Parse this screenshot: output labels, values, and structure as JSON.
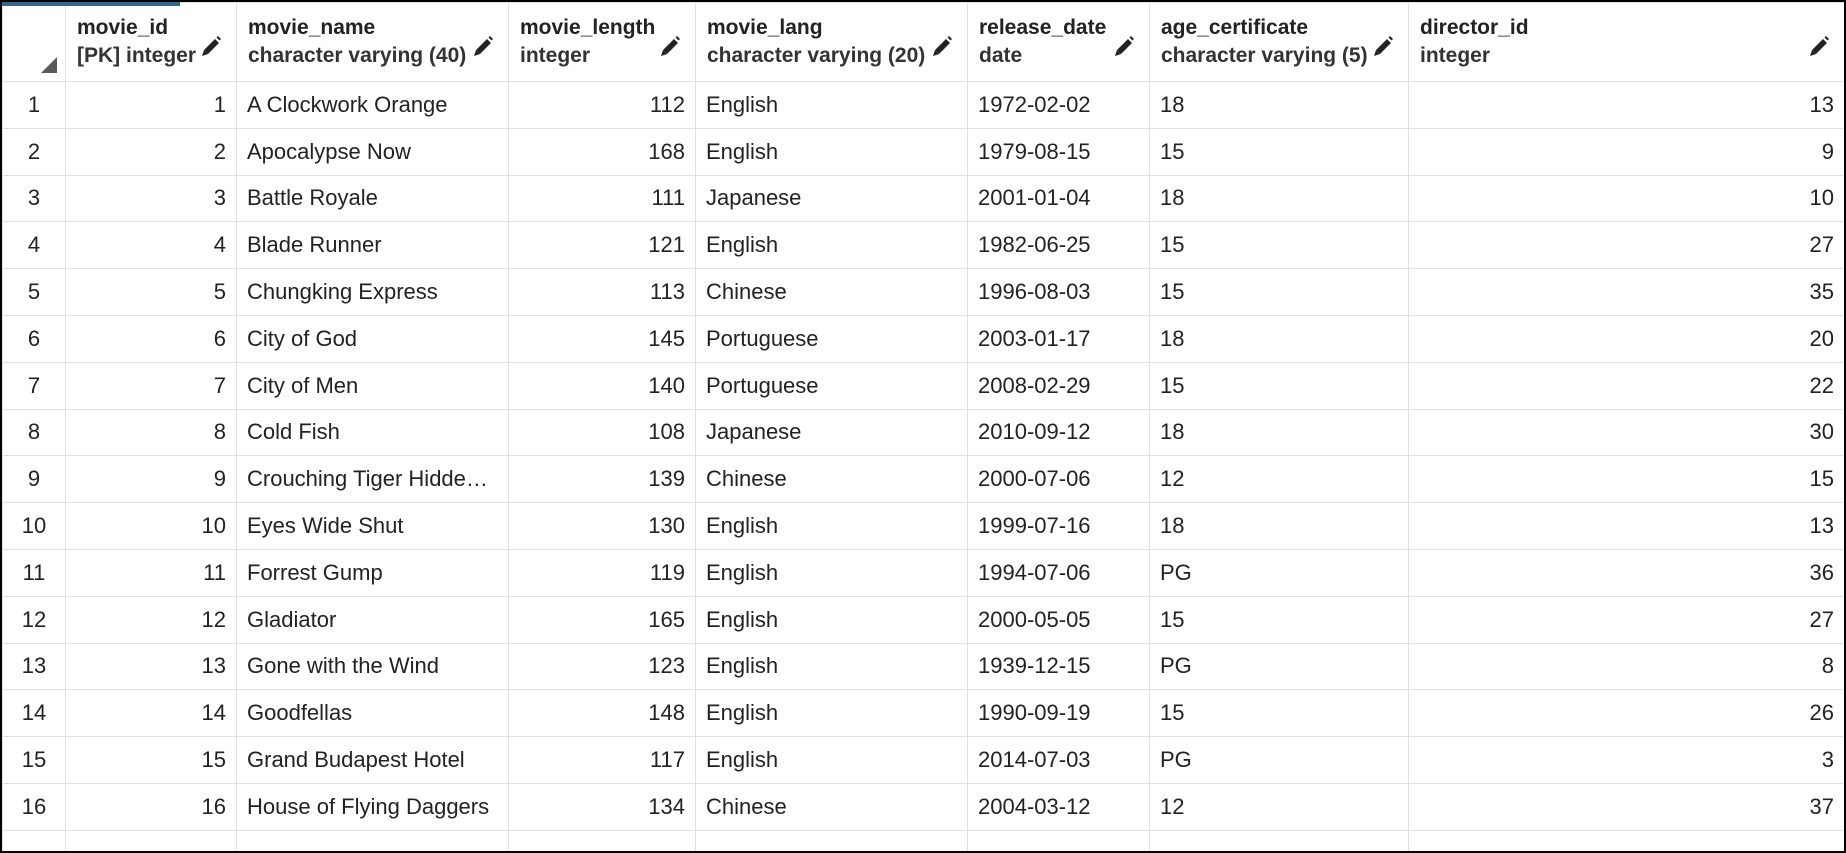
{
  "columns": [
    {
      "name": "movie_id",
      "type": "[PK] integer",
      "align": "num"
    },
    {
      "name": "movie_name",
      "type": "character varying (40)",
      "align": "txt"
    },
    {
      "name": "movie_length",
      "type": "integer",
      "align": "num"
    },
    {
      "name": "movie_lang",
      "type": "character varying (20)",
      "align": "txt"
    },
    {
      "name": "release_date",
      "type": "date",
      "align": "txt"
    },
    {
      "name": "age_certificate",
      "type": "character varying (5)",
      "align": "txt"
    },
    {
      "name": "director_id",
      "type": "integer",
      "align": "num"
    }
  ],
  "rows": [
    {
      "n": "1",
      "cells": [
        "1",
        "A Clockwork Orange",
        "112",
        "English",
        "1972-02-02",
        "18",
        "13"
      ]
    },
    {
      "n": "2",
      "cells": [
        "2",
        "Apocalypse Now",
        "168",
        "English",
        "1979-08-15",
        "15",
        "9"
      ]
    },
    {
      "n": "3",
      "cells": [
        "3",
        "Battle Royale",
        "111",
        "Japanese",
        "2001-01-04",
        "18",
        "10"
      ]
    },
    {
      "n": "4",
      "cells": [
        "4",
        "Blade Runner",
        "121",
        "English",
        "1982-06-25",
        "15",
        "27"
      ]
    },
    {
      "n": "5",
      "cells": [
        "5",
        "Chungking Express",
        "113",
        "Chinese",
        "1996-08-03",
        "15",
        "35"
      ]
    },
    {
      "n": "6",
      "cells": [
        "6",
        "City of God",
        "145",
        "Portuguese",
        "2003-01-17",
        "18",
        "20"
      ]
    },
    {
      "n": "7",
      "cells": [
        "7",
        "City of Men",
        "140",
        "Portuguese",
        "2008-02-29",
        "15",
        "22"
      ]
    },
    {
      "n": "8",
      "cells": [
        "8",
        "Cold Fish",
        "108",
        "Japanese",
        "2010-09-12",
        "18",
        "30"
      ]
    },
    {
      "n": "9",
      "cells": [
        "9",
        "Crouching Tiger Hidden Dra...",
        "139",
        "Chinese",
        "2000-07-06",
        "12",
        "15"
      ]
    },
    {
      "n": "10",
      "cells": [
        "10",
        "Eyes Wide Shut",
        "130",
        "English",
        "1999-07-16",
        "18",
        "13"
      ]
    },
    {
      "n": "11",
      "cells": [
        "11",
        "Forrest Gump",
        "119",
        "English",
        "1994-07-06",
        "PG",
        "36"
      ]
    },
    {
      "n": "12",
      "cells": [
        "12",
        "Gladiator",
        "165",
        "English",
        "2000-05-05",
        "15",
        "27"
      ]
    },
    {
      "n": "13",
      "cells": [
        "13",
        "Gone with the Wind",
        "123",
        "English",
        "1939-12-15",
        "PG",
        "8"
      ]
    },
    {
      "n": "14",
      "cells": [
        "14",
        "Goodfellas",
        "148",
        "English",
        "1990-09-19",
        "15",
        "26"
      ]
    },
    {
      "n": "15",
      "cells": [
        "15",
        "Grand Budapest Hotel",
        "117",
        "English",
        "2014-07-03",
        "PG",
        "3"
      ]
    },
    {
      "n": "16",
      "cells": [
        "16",
        "House of Flying Daggers",
        "134",
        "Chinese",
        "2004-03-12",
        "12",
        "37"
      ]
    }
  ],
  "icons": {
    "edit": "pencil-icon",
    "select_all": "select-all-corner-icon"
  },
  "colors": {
    "accent": "#326690",
    "grid_line": "#dde0e6"
  }
}
